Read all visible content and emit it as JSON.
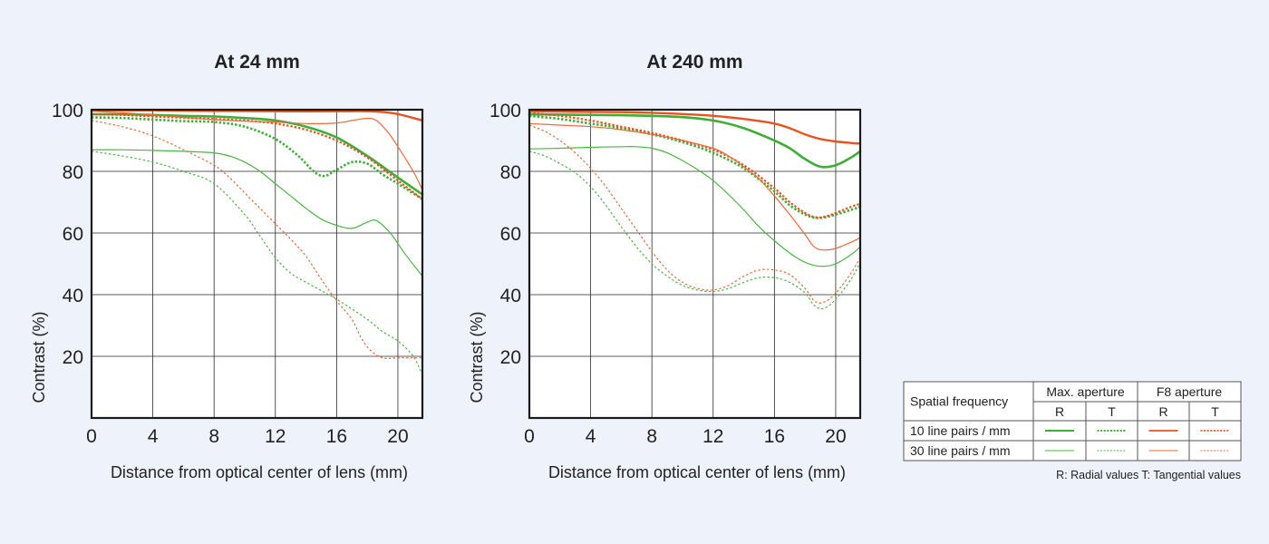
{
  "chart_data": [
    {
      "type": "line",
      "title": "At 24 mm",
      "xlabel": "Distance from optical center of lens (mm)",
      "ylabel": "Contrast (%)",
      "xlim": [
        0,
        21.6
      ],
      "ylim": [
        0,
        100
      ],
      "xticks": [
        0,
        4,
        8,
        12,
        16,
        20
      ],
      "yticks": [
        20,
        40,
        60,
        80,
        100
      ],
      "grid": true,
      "series": [
        {
          "key": "max_r10",
          "x": [
            0,
            2,
            4,
            6,
            8,
            10,
            12,
            14,
            16,
            18,
            20,
            21.6
          ],
          "y": [
            98.5,
            98.5,
            98.3,
            98,
            97.8,
            97.3,
            96.5,
            94.5,
            91,
            85,
            78,
            72.5
          ]
        },
        {
          "key": "max_t10",
          "x": [
            0,
            2,
            4,
            6,
            8,
            10,
            12,
            13.5,
            14.5,
            15.2,
            16,
            17,
            18,
            19,
            20,
            21.6
          ],
          "y": [
            97.5,
            97.3,
            96.8,
            96.3,
            96,
            94.5,
            90.5,
            85,
            80,
            78.5,
            80.5,
            83,
            82.5,
            79,
            76,
            71
          ]
        },
        {
          "key": "max_r30",
          "x": [
            0,
            2,
            4,
            6,
            8,
            9,
            10,
            11,
            12,
            13,
            14,
            15,
            16,
            17,
            18,
            18.6,
            19.5,
            20.5,
            21.6
          ],
          "y": [
            87,
            87,
            86.8,
            86.5,
            86,
            85,
            83,
            80,
            76,
            72,
            68,
            64.5,
            62.5,
            61.5,
            63.5,
            64,
            60,
            53,
            46
          ]
        },
        {
          "key": "max_t30",
          "x": [
            0,
            2,
            4,
            6,
            8,
            10,
            11,
            12,
            13,
            14,
            16,
            18,
            19,
            20,
            21,
            21.6
          ],
          "y": [
            86.5,
            85,
            83,
            80,
            76,
            66,
            59,
            52,
            47,
            44,
            38.5,
            32,
            28,
            25,
            20,
            14
          ]
        },
        {
          "key": "f8_r10",
          "x": [
            0,
            4,
            8,
            12,
            16,
            18,
            19.5,
            20.5,
            21.6
          ],
          "y": [
            99.8,
            99.8,
            99.6,
            99.5,
            99.5,
            99.5,
            99,
            98,
            96.5
          ]
        },
        {
          "key": "f8_t10",
          "x": [
            0,
            2,
            4,
            6,
            8,
            10,
            12,
            14,
            16,
            18,
            20,
            21.6
          ],
          "y": [
            98.5,
            98.3,
            97.8,
            97.4,
            97,
            96.5,
            95.5,
            93.5,
            90,
            84.5,
            77,
            71
          ]
        },
        {
          "key": "f8_r30",
          "x": [
            0,
            2,
            4,
            6,
            8,
            10,
            12,
            14,
            16,
            17,
            18,
            18.6,
            19.3,
            20,
            21,
            21.6
          ],
          "y": [
            99.5,
            99,
            98.3,
            97.5,
            96.8,
            96.3,
            96,
            95.5,
            95.7,
            96.5,
            97.2,
            96.5,
            93,
            88,
            80,
            74
          ]
        },
        {
          "key": "f8_t30",
          "x": [
            0,
            2,
            4,
            6,
            8,
            9,
            10,
            11,
            12,
            13,
            14,
            15,
            16,
            17,
            17.6,
            18.2,
            19,
            20,
            21.6
          ],
          "y": [
            96.5,
            94.5,
            91.5,
            87,
            82,
            78,
            73,
            68,
            63,
            58,
            52.5,
            45,
            38,
            32,
            26,
            22,
            19.5,
            19.5,
            19.5
          ]
        }
      ]
    },
    {
      "type": "line",
      "title": "At 240 mm",
      "xlabel": "Distance from optical center of lens (mm)",
      "ylabel": "Contrast (%)",
      "xlim": [
        0,
        21.6
      ],
      "ylim": [
        0,
        100
      ],
      "xticks": [
        0,
        4,
        8,
        12,
        16,
        20
      ],
      "yticks": [
        20,
        40,
        60,
        80,
        100
      ],
      "grid": true,
      "series": [
        {
          "key": "max_r10",
          "x": [
            0,
            2,
            4,
            6,
            8,
            10,
            12,
            14,
            16,
            17,
            18,
            19,
            20,
            21,
            21.6
          ],
          "y": [
            98.5,
            98.4,
            98.3,
            98.2,
            98,
            97.6,
            96.5,
            94,
            90,
            87.5,
            84,
            81.5,
            82,
            84.5,
            86.5
          ]
        },
        {
          "key": "max_t10",
          "x": [
            0,
            2,
            4,
            6,
            8,
            10,
            12,
            14,
            16,
            17,
            18,
            18.6,
            19.2,
            20,
            21,
            21.6
          ],
          "y": [
            98,
            97,
            95.5,
            94,
            92,
            89.5,
            86,
            81,
            73.5,
            69,
            66,
            65,
            65,
            66,
            67.5,
            68.5
          ]
        },
        {
          "key": "max_r30",
          "x": [
            0,
            2,
            4,
            6,
            7,
            8,
            9,
            10,
            11,
            12,
            13,
            14,
            15,
            16,
            17,
            18,
            19,
            20,
            21,
            21.6
          ],
          "y": [
            87.3,
            87.5,
            87.8,
            88,
            88,
            87.5,
            86,
            83.5,
            80.5,
            77,
            72.5,
            67.5,
            62,
            57.5,
            53.5,
            50.5,
            49.2,
            50,
            53,
            55.5
          ]
        },
        {
          "key": "max_t30",
          "x": [
            0,
            1,
            2,
            3,
            4,
            5,
            6,
            7,
            8,
            9,
            10,
            11,
            12,
            13,
            14,
            15,
            16,
            17,
            18,
            18.6,
            19.2,
            20,
            21,
            21.6
          ],
          "y": [
            86.5,
            85,
            82.5,
            79.5,
            75,
            69,
            62,
            55.5,
            50,
            46,
            43,
            41.5,
            41,
            42,
            44,
            45.5,
            45.5,
            44,
            40.5,
            36.5,
            35.5,
            38.5,
            45,
            50.5
          ]
        },
        {
          "key": "f8_r10",
          "x": [
            0,
            2,
            4,
            6,
            8,
            10,
            12,
            14,
            16,
            17,
            18,
            19,
            20,
            21,
            21.6
          ],
          "y": [
            99.5,
            99.4,
            99.3,
            99.2,
            99,
            98.6,
            98,
            97,
            95.5,
            94,
            92,
            90.5,
            89.7,
            89.2,
            89
          ]
        },
        {
          "key": "f8_t10",
          "x": [
            0,
            2,
            4,
            6,
            8,
            10,
            12,
            14,
            16,
            17,
            18,
            18.6,
            19.2,
            20,
            21,
            21.6
          ],
          "y": [
            99,
            98,
            96.5,
            94.5,
            92.5,
            90,
            87,
            82,
            74.5,
            70,
            66.5,
            65.2,
            65.2,
            66.5,
            68.5,
            69.5
          ]
        },
        {
          "key": "f8_r30",
          "x": [
            0,
            2,
            4,
            6,
            8,
            10,
            12,
            13,
            14,
            15,
            16,
            17,
            18,
            18.6,
            19.2,
            20,
            21,
            21.6
          ],
          "y": [
            95.5,
            95,
            94.5,
            93.5,
            92,
            90,
            87.5,
            85,
            81.5,
            77.5,
            72,
            66,
            59.5,
            55.5,
            54.5,
            55,
            57,
            58.5
          ]
        },
        {
          "key": "f8_t30",
          "x": [
            0,
            1,
            2,
            3,
            4,
            5,
            6,
            7,
            8,
            9,
            10,
            11,
            12,
            13,
            14,
            15,
            16,
            17,
            18,
            18.6,
            19.2,
            20,
            21,
            21.6
          ],
          "y": [
            95,
            93,
            90,
            86,
            81,
            75,
            68,
            61,
            54,
            48,
            44,
            42,
            41.5,
            43,
            46,
            48,
            48,
            46.5,
            42,
            38,
            37.5,
            40.5,
            47,
            52
          ]
        }
      ]
    }
  ],
  "series_styles": {
    "max_r10": {
      "color": "#3fae37",
      "width": 2.6,
      "dashed": false
    },
    "max_t10": {
      "color": "#3fae37",
      "width": 2.6,
      "dashed": true
    },
    "max_r30": {
      "color": "#4cb545",
      "width": 1.2,
      "dashed": false
    },
    "max_t30": {
      "color": "#4cb545",
      "width": 1.2,
      "dashed": true
    },
    "f8_r10": {
      "color": "#e8531f",
      "width": 2.4,
      "dashed": false
    },
    "f8_t10": {
      "color": "#e8531f",
      "width": 2.2,
      "dashed": true
    },
    "f8_r30": {
      "color": "#ea6a3a",
      "width": 1.2,
      "dashed": false
    },
    "f8_t30": {
      "color": "#ea6a3a",
      "width": 1.2,
      "dashed": true
    }
  },
  "legend": {
    "header_col": "Spatial frequency",
    "group1": "Max. aperture",
    "group2": "F8 aperture",
    "sub_r": "R",
    "sub_t": "T",
    "row1": "10 line pairs / mm",
    "row2": "30 line pairs / mm",
    "note": "R: Radial values  T: Tangential values"
  }
}
